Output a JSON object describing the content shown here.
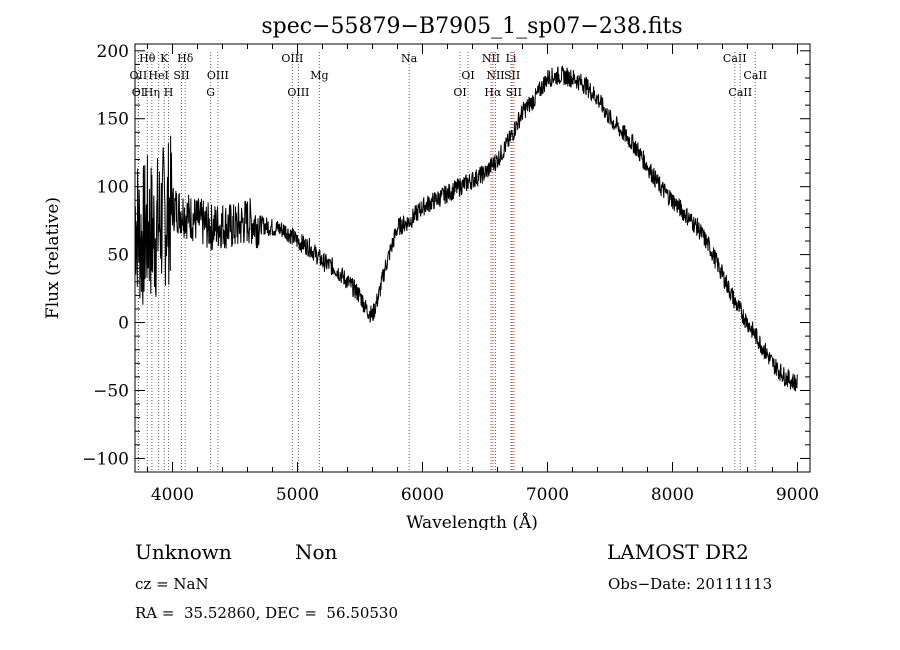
{
  "chart_data": {
    "type": "line",
    "title": "spec−55879−B7905_1_sp07−238.fits",
    "xlabel": "Wavelength (Å)",
    "ylabel": "Flux (relative)",
    "xlim": [
      3700,
      9100
    ],
    "ylim": [
      -110,
      205
    ],
    "x_ticks": [
      4000,
      5000,
      6000,
      7000,
      8000,
      9000
    ],
    "y_ticks": [
      -100,
      -50,
      0,
      50,
      100,
      150,
      200
    ],
    "y_tick_labels": [
      "−100",
      "−50",
      "0",
      "50",
      "100",
      "150",
      "200"
    ],
    "series": [
      {
        "color": "#000000",
        "x": [
          3700,
          3750,
          3800,
          3850,
          3900,
          3950,
          4000,
          4100,
          4200,
          4300,
          4400,
          4500,
          4600,
          4700,
          4800,
          4900,
          5000,
          5100,
          5200,
          5300,
          5400,
          5500,
          5550,
          5600,
          5650,
          5700,
          5800,
          5900,
          6000,
          6100,
          6200,
          6300,
          6400,
          6500,
          6600,
          6700,
          6800,
          6900,
          7000,
          7100,
          7200,
          7300,
          7400,
          7500,
          7600,
          7700,
          7800,
          7900,
          8000,
          8100,
          8200,
          8300,
          8400,
          8500,
          8600,
          8700,
          8800,
          8900,
          9000
        ],
        "y": [
          80,
          60,
          70,
          65,
          75,
          80,
          85,
          80,
          75,
          70,
          72,
          70,
          75,
          72,
          70,
          68,
          60,
          55,
          45,
          40,
          30,
          20,
          10,
          5,
          20,
          40,
          70,
          75,
          85,
          90,
          95,
          100,
          105,
          110,
          120,
          135,
          155,
          165,
          180,
          182,
          180,
          175,
          165,
          150,
          140,
          130,
          115,
          100,
          90,
          80,
          70,
          55,
          35,
          15,
          0,
          -15,
          -30,
          -40,
          -45
        ]
      }
    ],
    "line_markers": [
      {
        "label": "Hθ",
        "x": 3798,
        "row": 1
      },
      {
        "label": "K",
        "x": 3934,
        "row": 1
      },
      {
        "label": "Hδ",
        "x": 4102,
        "row": 1
      },
      {
        "label": "OII",
        "x": 3727,
        "row": 2
      },
      {
        "label": "HeI",
        "x": 3889,
        "row": 2
      },
      {
        "label": "SII",
        "x": 4072,
        "row": 2
      },
      {
        "label": "OI",
        "x": 3727,
        "row": 3
      },
      {
        "label": "Hη",
        "x": 3835,
        "row": 3
      },
      {
        "label": "H",
        "x": 3968,
        "row": 3
      },
      {
        "label": "OIII",
        "x": 4363,
        "row": 2
      },
      {
        "label": "G",
        "x": 4305,
        "row": 3
      },
      {
        "label": "OIII",
        "x": 4959,
        "row": 1
      },
      {
        "label": "OIII",
        "x": 5007,
        "row": 3
      },
      {
        "label": "Mg",
        "x": 5175,
        "row": 2
      },
      {
        "label": "Na",
        "x": 5893,
        "row": 1
      },
      {
        "label": "OI",
        "x": 6364,
        "row": 2
      },
      {
        "label": "OI",
        "x": 6300,
        "row": 3
      },
      {
        "label": "NII",
        "x": 6548,
        "row": 1
      },
      {
        "label": "Li",
        "x": 6708,
        "row": 1
      },
      {
        "label": "NII",
        "x": 6584,
        "row": 2
      },
      {
        "label": "SII",
        "x": 6717,
        "row": 2
      },
      {
        "label": "Hα",
        "x": 6563,
        "row": 3
      },
      {
        "label": "SII",
        "x": 6731,
        "row": 3
      },
      {
        "label": "CaII",
        "x": 8498,
        "row": 1
      },
      {
        "label": "CaII",
        "x": 8662,
        "row": 2
      },
      {
        "label": "CaII",
        "x": 8542,
        "row": 3
      }
    ],
    "grid": false,
    "legend": "none"
  },
  "footer": {
    "class_label": "Unknown",
    "subclass_label": "Non",
    "survey": "LAMOST DR2",
    "cz": "cz = NaN",
    "obs_date": "Obs−Date: 20111113",
    "coords": "RA =  35.52860, DEC =  56.50530"
  }
}
